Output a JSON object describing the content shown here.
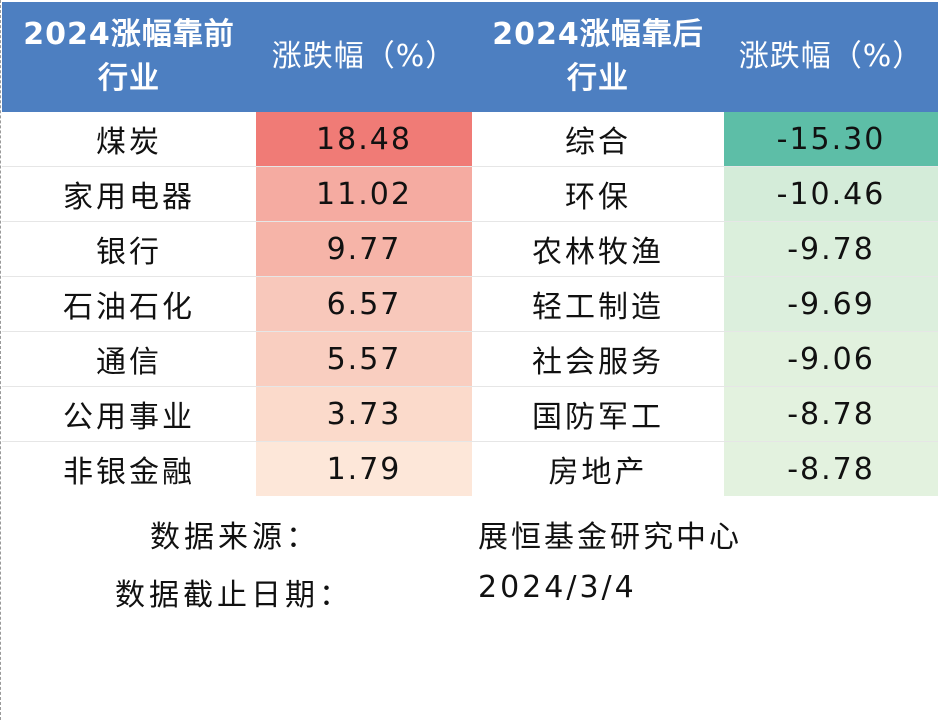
{
  "header": {
    "top_title": "2024涨幅靠前",
    "top_title_sub": "行业",
    "top_change": "涨跌幅（%）",
    "bottom_title": "2024涨幅靠后",
    "bottom_title_sub": "行业",
    "bottom_change": "涨跌幅（%）"
  },
  "rows": [
    {
      "top_industry": "煤炭",
      "top_value": "18.48",
      "top_color": "#f07b76",
      "bottom_industry": "综合",
      "bottom_value": "-15.30",
      "bottom_color": "#5dbea7"
    },
    {
      "top_industry": "家用电器",
      "top_value": "11.02",
      "top_color": "#f5aba1",
      "bottom_industry": "环保",
      "bottom_value": "-10.46",
      "bottom_color": "#d4ecd9"
    },
    {
      "top_industry": "银行",
      "top_value": "9.77",
      "top_color": "#f6b4a8",
      "bottom_industry": "农林牧渔",
      "bottom_value": "-9.78",
      "bottom_color": "#dbefdc"
    },
    {
      "top_industry": "石油石化",
      "top_value": "6.57",
      "top_color": "#f8c8bb",
      "bottom_industry": "轻工制造",
      "bottom_value": "-9.69",
      "bottom_color": "#dcefdd"
    },
    {
      "top_industry": "通信",
      "top_value": "5.57",
      "top_color": "#f9cec0",
      "bottom_industry": "社会服务",
      "bottom_value": "-9.06",
      "bottom_color": "#e1f1de"
    },
    {
      "top_industry": "公用事业",
      "top_value": "3.73",
      "top_color": "#fbdacb",
      "bottom_industry": "国防军工",
      "bottom_value": "-8.78",
      "bottom_color": "#e3f2df"
    },
    {
      "top_industry": "非银金融",
      "top_value": "1.79",
      "top_color": "#fde7d9",
      "bottom_industry": "房地产",
      "bottom_value": "-8.78",
      "bottom_color": "#e3f2df"
    }
  ],
  "footer": {
    "source_label": "数据来源：",
    "source_value": "展恒基金研究中心",
    "date_label": "数据截止日期：",
    "date_value": "2024/3/4"
  }
}
